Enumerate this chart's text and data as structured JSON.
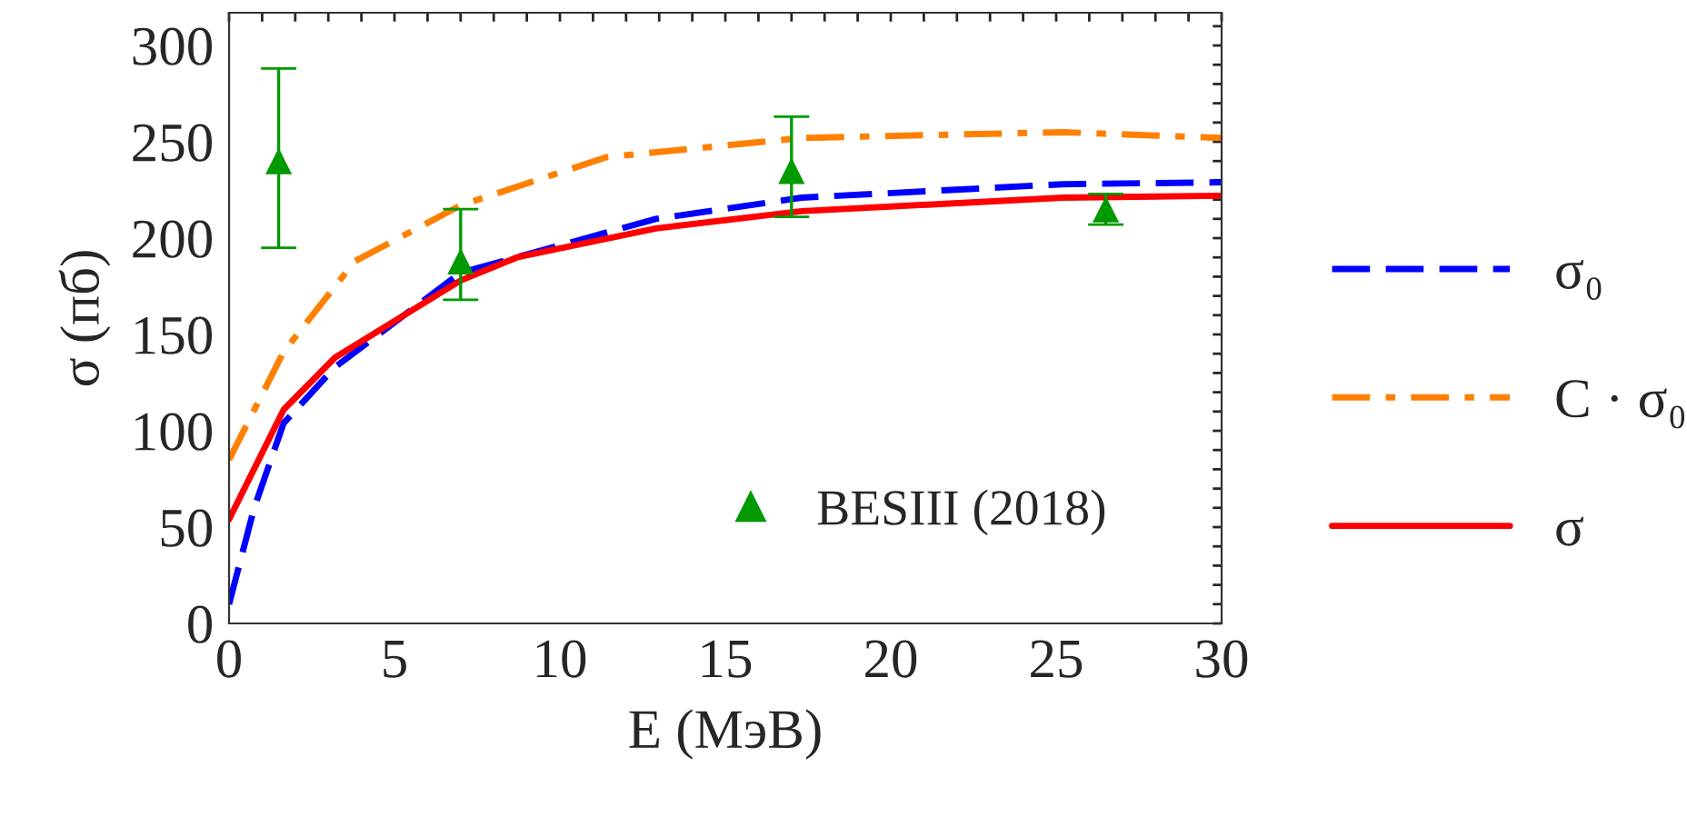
{
  "chart_data": {
    "type": "line",
    "xlabel": "E (МэВ)",
    "ylabel": "σ (пб)",
    "xlim": [
      0,
      30
    ],
    "ylim": [
      0,
      317
    ],
    "xticks": [
      0,
      {
        "value": 1,
        "label": null
      },
      {
        "value": 2,
        "label": null
      },
      {
        "value": 3,
        "label": null
      },
      {
        "value": 4,
        "label": null
      },
      5,
      {
        "value": 6,
        "label": null
      },
      {
        "value": 7,
        "label": null
      },
      {
        "value": 8,
        "label": null
      },
      {
        "value": 9,
        "label": null
      },
      10,
      {
        "value": 11,
        "label": null
      },
      {
        "value": 12,
        "label": null
      },
      {
        "value": 13,
        "label": null
      },
      {
        "value": 14,
        "label": null
      },
      15,
      {
        "value": 16,
        "label": null
      },
      {
        "value": 17,
        "label": null
      },
      {
        "value": 18,
        "label": null
      },
      {
        "value": 19,
        "label": null
      },
      20,
      {
        "value": 21,
        "label": null
      },
      {
        "value": 22,
        "label": null
      },
      {
        "value": 23,
        "label": null
      },
      {
        "value": 24,
        "label": null
      },
      25,
      {
        "value": 26,
        "label": null
      },
      {
        "value": 27,
        "label": null
      },
      {
        "value": 28,
        "label": null
      },
      {
        "value": 29,
        "label": null
      },
      30
    ],
    "yticks": [
      0,
      {
        "value": 10,
        "label": null
      },
      {
        "value": 20,
        "label": null
      },
      {
        "value": 30,
        "label": null
      },
      {
        "value": 40,
        "label": null
      },
      50,
      {
        "value": 60,
        "label": null
      },
      {
        "value": 70,
        "label": null
      },
      {
        "value": 80,
        "label": null
      },
      {
        "value": 90,
        "label": null
      },
      100,
      {
        "value": 110,
        "label": null
      },
      {
        "value": 120,
        "label": null
      },
      {
        "value": 130,
        "label": null
      },
      {
        "value": 140,
        "label": null
      },
      150,
      {
        "value": 160,
        "label": null
      },
      {
        "value": 170,
        "label": null
      },
      {
        "value": 180,
        "label": null
      },
      {
        "value": 190,
        "label": null
      },
      200,
      {
        "value": 210,
        "label": null
      },
      {
        "value": 220,
        "label": null
      },
      {
        "value": 230,
        "label": null
      },
      {
        "value": 240,
        "label": null
      },
      250,
      {
        "value": 260,
        "label": null
      },
      {
        "value": 270,
        "label": null
      },
      {
        "value": 280,
        "label": null
      },
      {
        "value": 290,
        "label": null
      },
      300,
      {
        "value": 310,
        "label": null
      }
    ],
    "grid": false,
    "legend": "right",
    "series": [
      {
        "name": "σ₀",
        "color": "#0000ff",
        "line_style": "dashed",
        "x": [
          0,
          0.76,
          1.65,
          3.2,
          7,
          12.9,
          17.3,
          25.2,
          30
        ],
        "values": [
          10,
          60,
          104,
          133,
          182,
          210,
          221,
          228,
          229
        ]
      },
      {
        "name": "C · σ₀",
        "color": "#ff8000",
        "line_style": "dashdot",
        "x": [
          0,
          1.65,
          3.8,
          7,
          11.4,
          17.3,
          25.2,
          30
        ],
        "values": [
          85,
          141,
          188,
          217,
          242,
          252,
          255,
          252
        ]
      },
      {
        "name": "σ",
        "color": "#ff0000",
        "line_style": "solid",
        "x": [
          0,
          1.65,
          3.2,
          7,
          8.7,
          12.9,
          17.3,
          25.2,
          30
        ],
        "values": [
          54,
          111,
          138,
          178,
          190,
          205,
          214,
          221,
          222
        ]
      },
      {
        "name": "BESIII (2018)",
        "type": "scatter",
        "color": "#009900",
        "marker": "triangle",
        "x": [
          1.5,
          7,
          17,
          26.5
        ],
        "values": [
          240,
          188,
          235,
          215
        ],
        "errors": [
          [
            195,
            288
          ],
          [
            168,
            215
          ],
          [
            211,
            263
          ],
          [
            207,
            223
          ]
        ]
      }
    ]
  }
}
